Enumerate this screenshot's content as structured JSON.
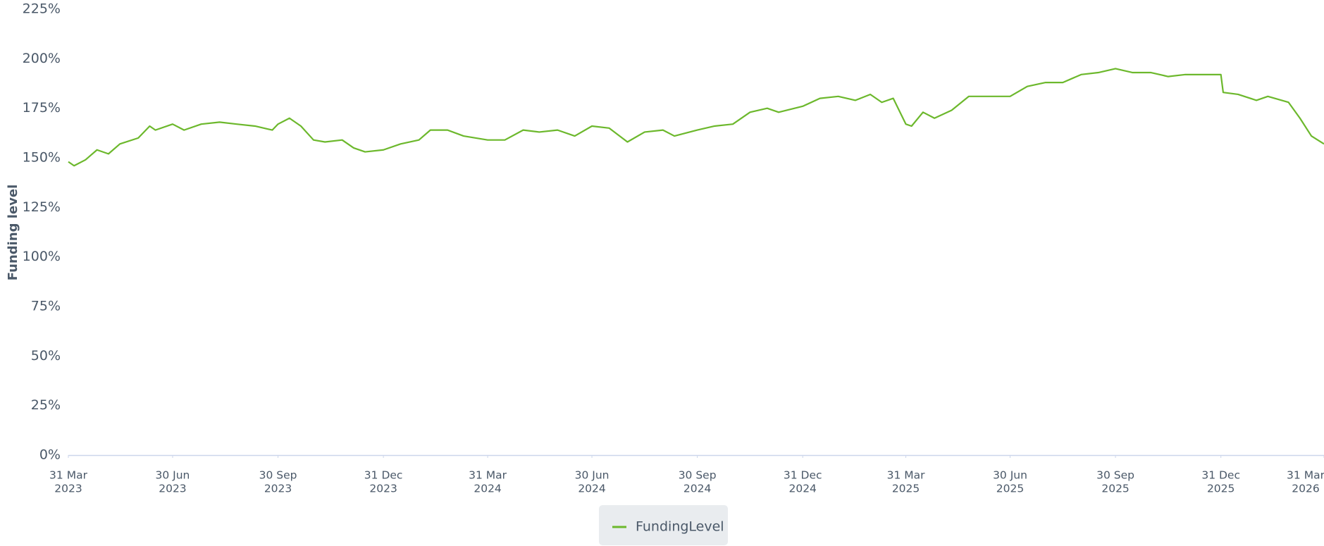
{
  "chart_data": {
    "type": "line",
    "y_label": "Funding level",
    "x": [
      "2023-03-31",
      "2023-04-05",
      "2023-04-15",
      "2023-04-25",
      "2023-05-05",
      "2023-05-15",
      "2023-05-31",
      "2023-06-10",
      "2023-06-15",
      "2023-06-30",
      "2023-07-10",
      "2023-07-25",
      "2023-08-10",
      "2023-08-25",
      "2023-09-10",
      "2023-09-25",
      "2023-09-30",
      "2023-10-10",
      "2023-10-20",
      "2023-10-31",
      "2023-11-10",
      "2023-11-25",
      "2023-12-05",
      "2023-12-15",
      "2023-12-31",
      "2024-01-15",
      "2024-01-31",
      "2024-02-10",
      "2024-02-25",
      "2024-03-10",
      "2024-03-31",
      "2024-04-15",
      "2024-05-01",
      "2024-05-15",
      "2024-05-31",
      "2024-06-15",
      "2024-06-30",
      "2024-07-15",
      "2024-07-31",
      "2024-08-15",
      "2024-08-31",
      "2024-09-10",
      "2024-09-30",
      "2024-10-15",
      "2024-10-31",
      "2024-11-15",
      "2024-11-30",
      "2024-12-10",
      "2024-12-31",
      "2025-01-15",
      "2025-01-31",
      "2025-02-15",
      "2025-02-28",
      "2025-03-10",
      "2025-03-20",
      "2025-03-31",
      "2025-04-05",
      "2025-04-15",
      "2025-04-25",
      "2025-05-10",
      "2025-05-25",
      "2025-06-10",
      "2025-06-30",
      "2025-07-15",
      "2025-07-31",
      "2025-08-15",
      "2025-08-31",
      "2025-09-15",
      "2025-09-30",
      "2025-10-15",
      "2025-10-31",
      "2025-11-15",
      "2025-11-30",
      "2025-12-15",
      "2025-12-31",
      "2026-01-02",
      "2026-01-15",
      "2026-01-31",
      "2026-02-10",
      "2026-02-28",
      "2026-03-10",
      "2026-03-20",
      "2026-03-31"
    ],
    "series": [
      {
        "name": "FundingLevel",
        "color": "#6cb82c",
        "values": [
          148,
          146,
          149,
          154,
          152,
          157,
          160,
          166,
          164,
          167,
          164,
          167,
          168,
          167,
          166,
          164,
          167,
          170,
          166,
          159,
          158,
          159,
          155,
          153,
          154,
          157,
          159,
          164,
          164,
          161,
          159,
          159,
          164,
          163,
          164,
          161,
          166,
          165,
          158,
          163,
          164,
          161,
          164,
          166,
          167,
          173,
          175,
          173,
          176,
          180,
          181,
          179,
          182,
          178,
          180,
          167,
          166,
          173,
          170,
          174,
          181,
          181,
          181,
          186,
          188,
          188,
          192,
          193,
          195,
          193,
          193,
          191,
          192,
          192,
          192,
          183,
          182,
          179,
          181,
          178,
          170,
          161,
          157
        ]
      }
    ],
    "xlim": [
      "2023-03-31",
      "2026-03-31"
    ],
    "xticks": [
      {
        "value": "2023-03-31",
        "label": [
          "31 Mar",
          "2023"
        ]
      },
      {
        "value": "2023-06-30",
        "label": [
          "30 Jun",
          "2023"
        ]
      },
      {
        "value": "2023-09-30",
        "label": [
          "30 Sep",
          "2023"
        ]
      },
      {
        "value": "2023-12-31",
        "label": [
          "31 Dec",
          "2023"
        ]
      },
      {
        "value": "2024-03-31",
        "label": [
          "31 Mar",
          "2024"
        ]
      },
      {
        "value": "2024-06-30",
        "label": [
          "30 Jun",
          "2024"
        ]
      },
      {
        "value": "2024-09-30",
        "label": [
          "30 Sep",
          "2024"
        ]
      },
      {
        "value": "2024-12-31",
        "label": [
          "31 Dec",
          "2024"
        ]
      },
      {
        "value": "2025-03-31",
        "label": [
          "31 Mar",
          "2025"
        ]
      },
      {
        "value": "2025-06-30",
        "label": [
          "30 Jun",
          "2025"
        ]
      },
      {
        "value": "2025-09-30",
        "label": [
          "30 Sep",
          "2025"
        ]
      },
      {
        "value": "2025-12-31",
        "label": [
          "31 Dec",
          "2025"
        ]
      },
      {
        "value": "2026-03-31",
        "label": [
          "31 Mar",
          "2026"
        ]
      }
    ],
    "ylim": [
      0,
      225
    ],
    "yticks": [
      {
        "value": 0,
        "label": "0%"
      },
      {
        "value": 25,
        "label": "25%"
      },
      {
        "value": 50,
        "label": "50%"
      },
      {
        "value": 75,
        "label": "75%"
      },
      {
        "value": 100,
        "label": "100%"
      },
      {
        "value": 125,
        "label": "125%"
      },
      {
        "value": 150,
        "label": "150%"
      },
      {
        "value": 175,
        "label": "175%"
      },
      {
        "value": 200,
        "label": "200%"
      },
      {
        "value": 225,
        "label": "225%"
      }
    ],
    "grid": false,
    "legend": "bottom"
  }
}
